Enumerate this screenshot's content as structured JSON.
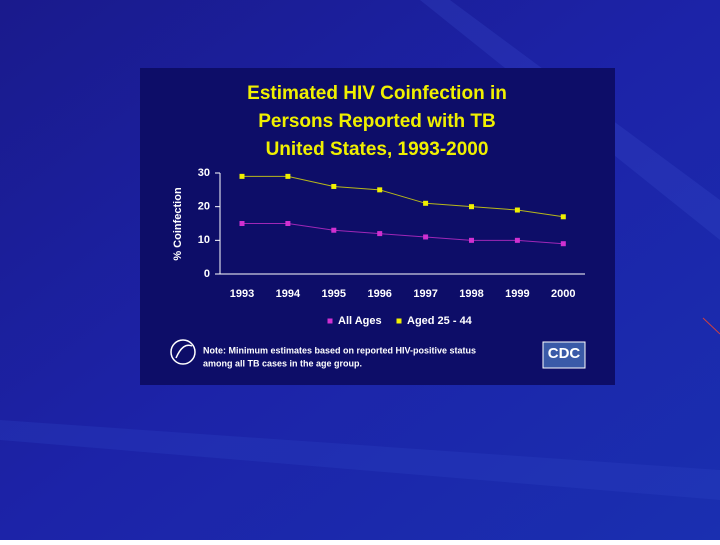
{
  "chart_data": {
    "type": "line",
    "title": [
      "Estimated HIV Coinfection in",
      "Persons Reported with TB",
      "United States, 1993-2000"
    ],
    "y_label": "% Coinfection",
    "categories": [
      "1993",
      "1994",
      "1995",
      "1996",
      "1997",
      "1998",
      "1999",
      "2000"
    ],
    "series": [
      {
        "name": "All Ages",
        "color": "#d030d0",
        "values": [
          15,
          15,
          13,
          12,
          11,
          10,
          10,
          9
        ]
      },
      {
        "name": "Aged 25 - 44",
        "color": "#f0f000",
        "values": [
          29,
          29,
          26,
          25,
          21,
          20,
          19,
          17
        ]
      }
    ],
    "ylim": [
      0,
      30
    ],
    "yticks": [
      0,
      10,
      20,
      30
    ],
    "note": [
      "Note: Minimum estimates based on reported HIV-positive status",
      "among all TB cases in the age group."
    ],
    "logo": "CDC"
  }
}
